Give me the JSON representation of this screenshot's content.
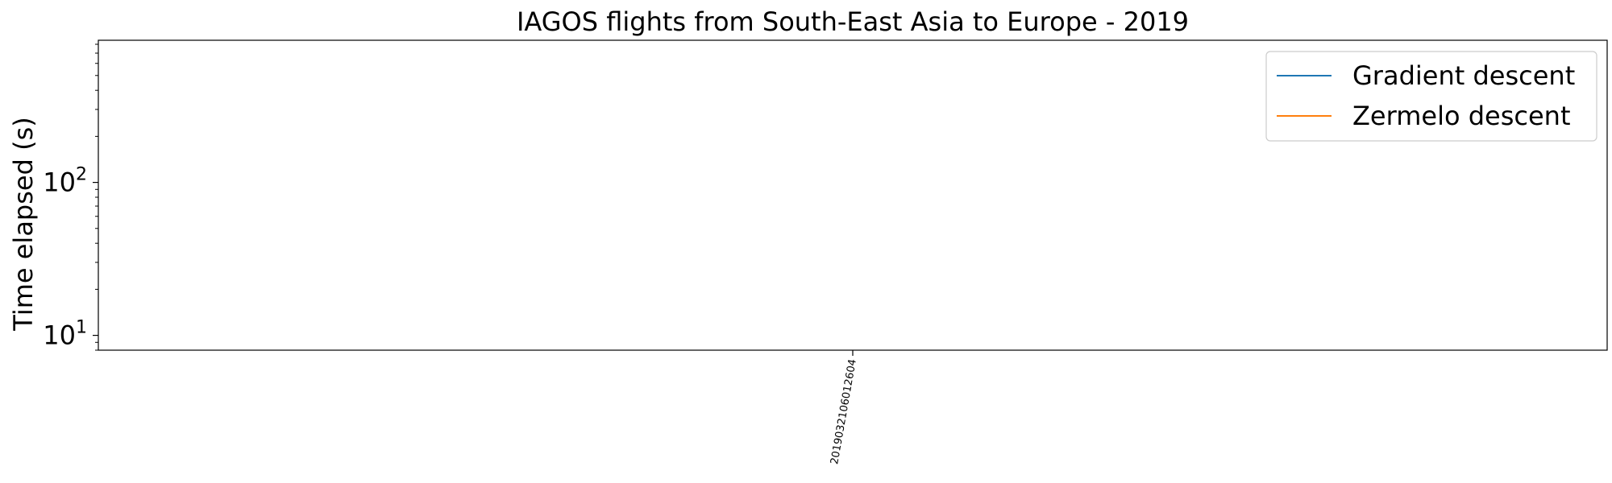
{
  "chart_data": {
    "type": "line",
    "title": "IAGOS flights from South-East Asia to Europe - 2019",
    "xlabel": "",
    "ylabel": "Time elapsed (s)",
    "yscale": "log",
    "ylim": [
      8,
      850
    ],
    "y_ticks": [
      {
        "value": 10,
        "base": "10",
        "exp": "1"
      },
      {
        "value": 100,
        "base": "10",
        "exp": "2"
      }
    ],
    "categories": [
      "2019032106012604"
    ],
    "series": [
      {
        "name": "Gradient descent",
        "color": "#1f77b4",
        "values": [
          null
        ]
      },
      {
        "name": "Zermelo descent",
        "color": "#ff7f0e",
        "values": [
          null
        ]
      }
    ],
    "legend_position": "top-right",
    "grid": false
  }
}
